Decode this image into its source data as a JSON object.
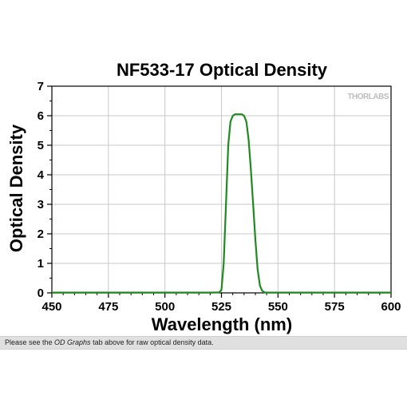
{
  "chart_data": {
    "type": "line",
    "title": "NF533-17 Optical Density",
    "xlabel": "Wavelength (nm)",
    "ylabel": "Optical Density",
    "xlim": [
      450,
      600
    ],
    "ylim": [
      0,
      7
    ],
    "x_ticks": [
      "450",
      "475",
      "500",
      "525",
      "550",
      "575",
      "600"
    ],
    "y_ticks": [
      "0",
      "1",
      "2",
      "3",
      "4",
      "5",
      "6",
      "7"
    ],
    "grid": true,
    "series_color": "#1f8a1f",
    "series": [
      {
        "x": [
          450,
          460,
          470,
          480,
          490,
          500,
          510,
          515,
          520,
          524,
          525,
          526,
          527,
          528,
          529,
          530,
          531,
          532,
          533,
          534,
          535,
          536,
          537,
          538,
          539,
          540,
          541,
          542,
          543,
          544,
          545,
          550,
          560,
          570,
          580,
          590,
          600
        ],
        "y": [
          0.01,
          0.01,
          0.01,
          0.01,
          0.01,
          0.01,
          0.01,
          0.01,
          0.01,
          0.02,
          0.1,
          1.0,
          3.0,
          5.0,
          5.8,
          6.0,
          6.05,
          6.05,
          6.05,
          6.05,
          6.0,
          5.8,
          5.2,
          4.2,
          3.0,
          1.8,
          0.8,
          0.25,
          0.07,
          0.02,
          0.01,
          0.01,
          0.01,
          0.01,
          0.01,
          0.01,
          0.01
        ]
      }
    ]
  },
  "watermark": "THORLABS",
  "caption": {
    "before": "Please see the ",
    "emphasis": "OD Graphs",
    "after": " tab above for raw optical density data."
  }
}
